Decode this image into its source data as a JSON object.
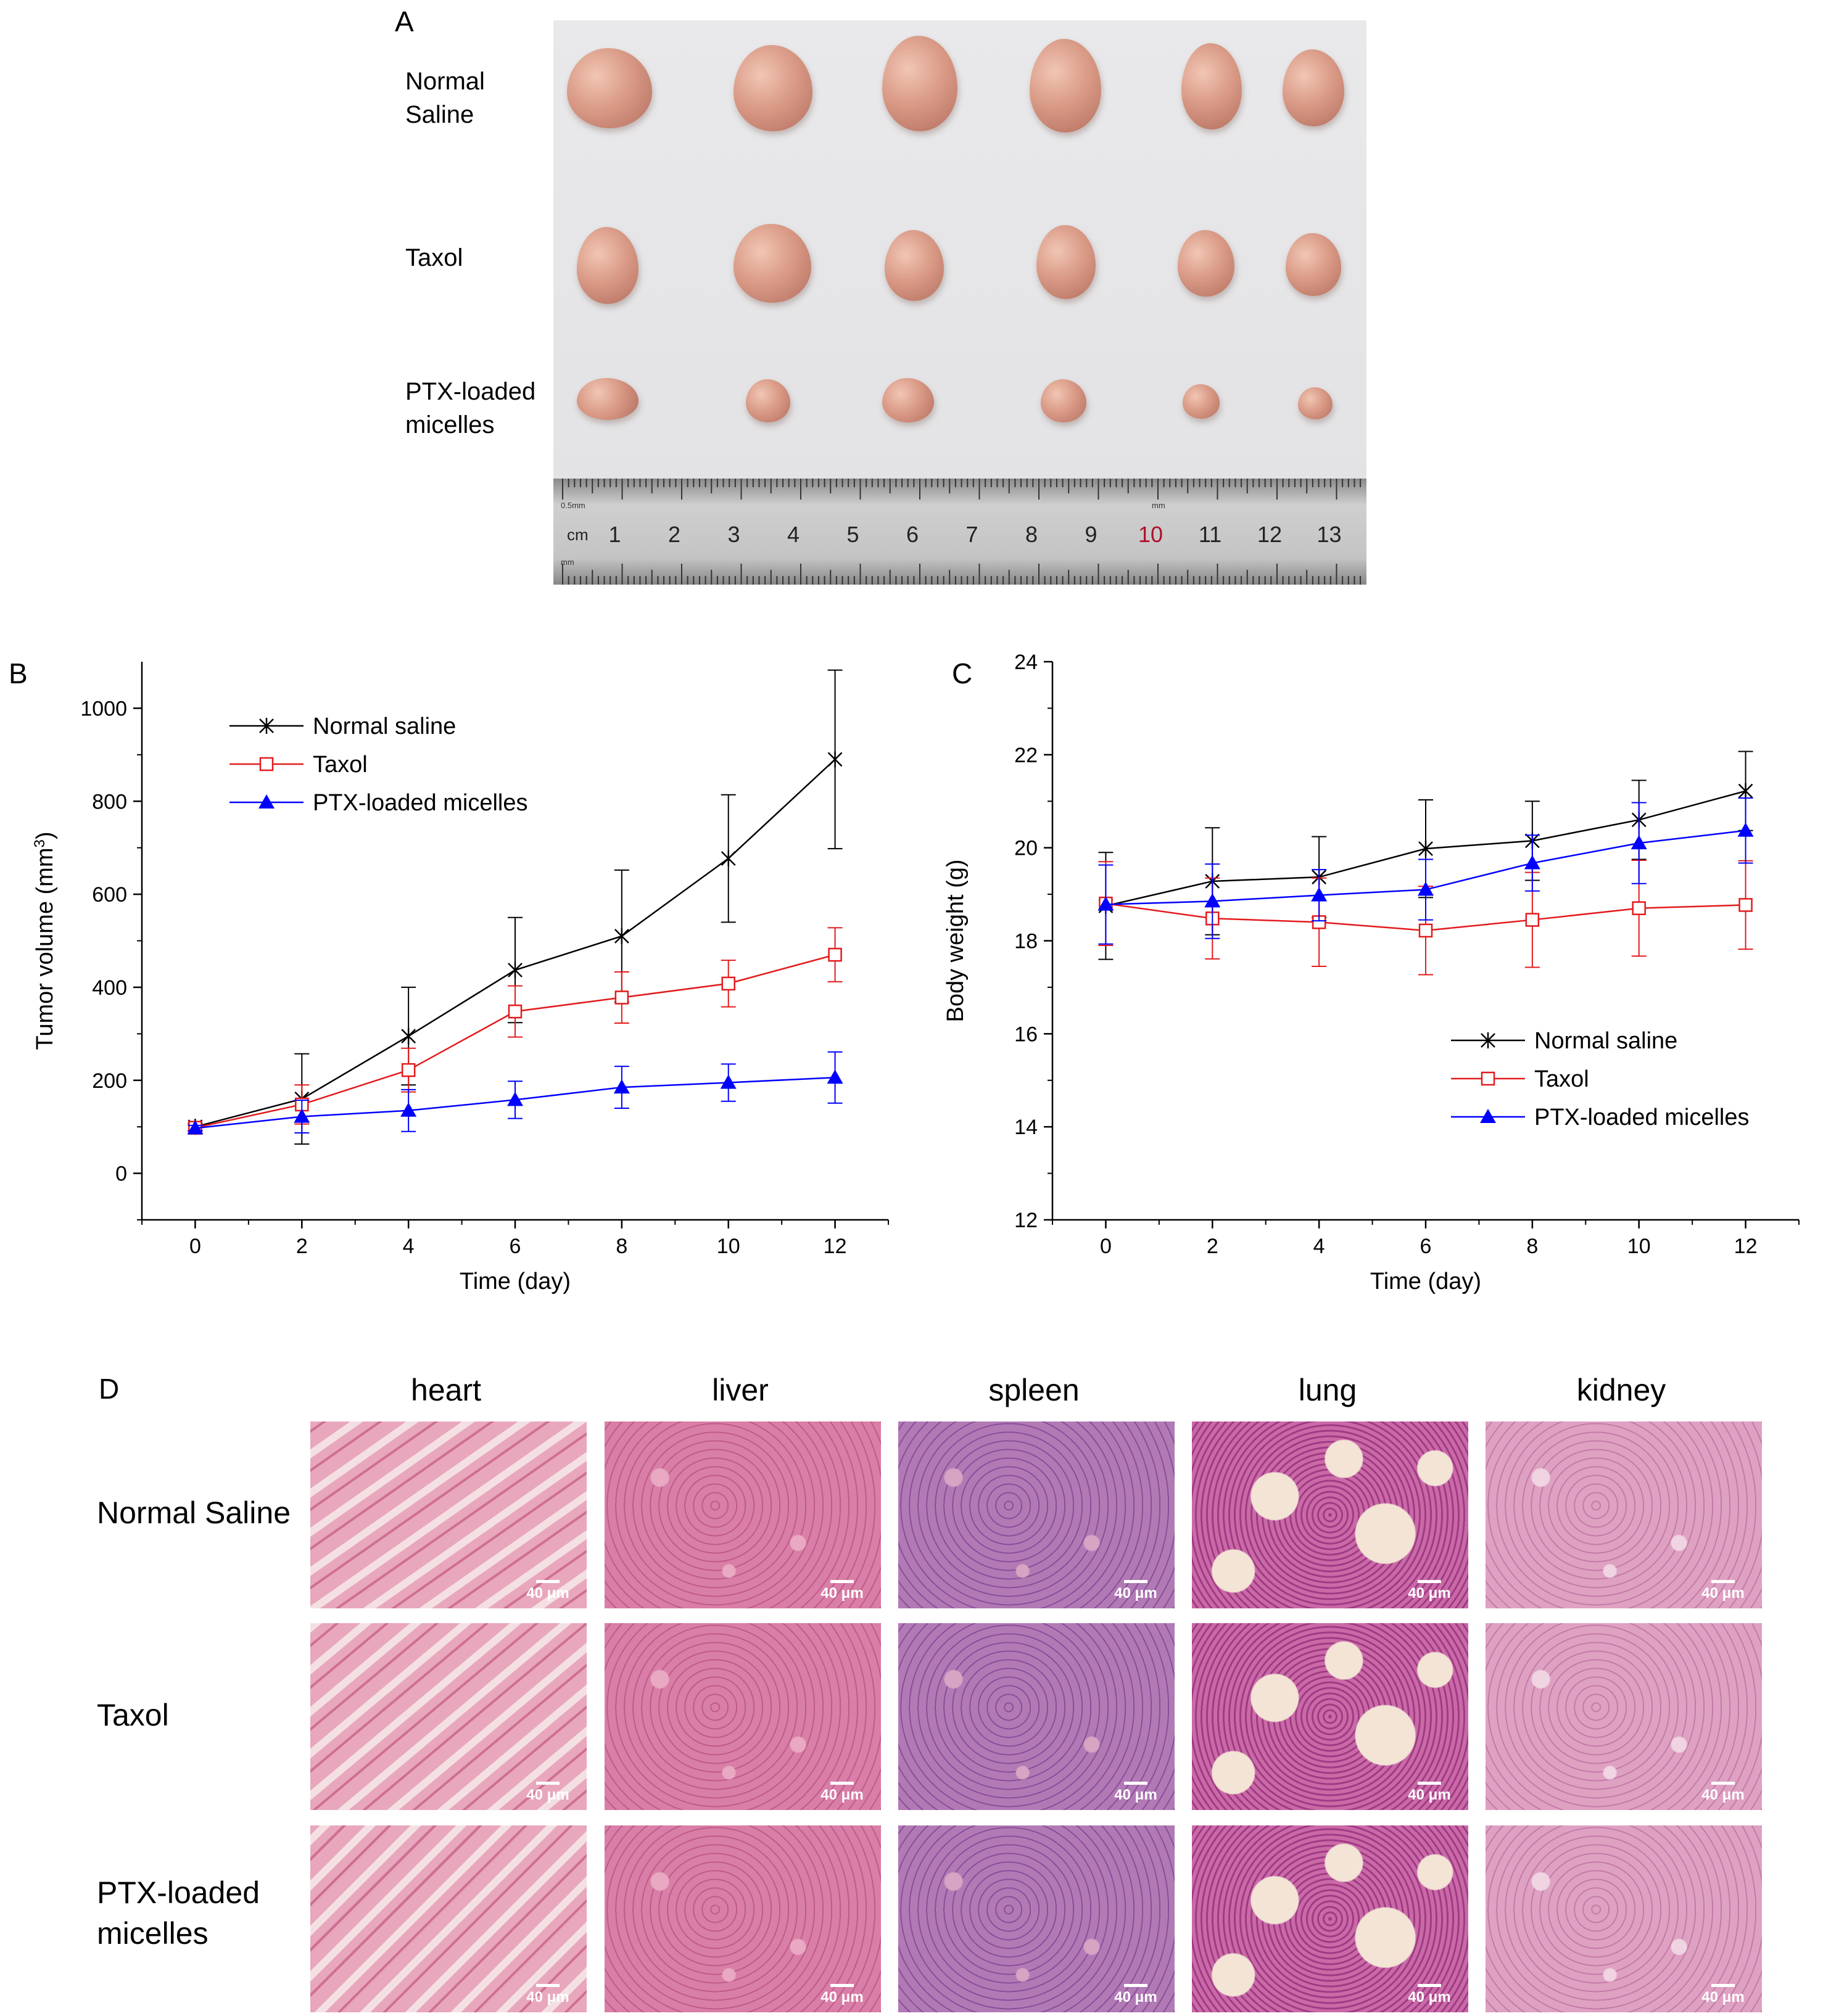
{
  "panel_labels": {
    "a": "A",
    "b": "B",
    "c": "C",
    "d": "D"
  },
  "panel_a": {
    "row_labels": [
      [
        "Normal",
        "Saline"
      ],
      [
        "Taxol"
      ],
      [
        "PTX-loaded",
        "micelles"
      ]
    ],
    "ruler": {
      "unit": "cm",
      "numbers": [
        "1",
        "2",
        "3",
        "4",
        "5",
        "6",
        "7",
        "8",
        "9",
        "10",
        "11",
        "12",
        "13"
      ],
      "small_top": "0.5mm",
      "small_mid": "mm",
      "small_bottom": "mm"
    }
  },
  "legend_labels": [
    "Normal saline",
    "Taxol",
    "PTX-loaded micelles"
  ],
  "colors": {
    "normal_saline": "#000000",
    "taxol": "#e31a1c",
    "ptx": "#0000ff"
  },
  "chart_data": [
    {
      "id": "B",
      "type": "line",
      "title": "",
      "xlabel": "Time (day)",
      "ylabel": "Tumor volume (mm3)",
      "ylabel_main": "Tumor volume (mm",
      "ylabel_sup": "3",
      "ylabel_tail": ")",
      "x": [
        0,
        2,
        4,
        6,
        8,
        10,
        12
      ],
      "xlim": [
        -1,
        13
      ],
      "ylim": [
        -100,
        1100
      ],
      "xticks": [
        0,
        2,
        4,
        6,
        8,
        10,
        12
      ],
      "yticks": [
        0,
        200,
        400,
        600,
        800,
        1000
      ],
      "legend_position": "top-left",
      "series": [
        {
          "name": "Normal saline",
          "marker": "asterisk",
          "color": "#000000",
          "values": [
            100,
            160,
            295,
            437,
            510,
            677,
            890
          ],
          "errors": [
            8,
            97,
            105,
            113,
            142,
            137,
            192
          ]
        },
        {
          "name": "Taxol",
          "marker": "open-square",
          "color": "#e31a1c",
          "values": [
            98,
            148,
            222,
            348,
            378,
            408,
            470
          ],
          "errors": [
            7,
            42,
            47,
            55,
            55,
            50,
            58
          ]
        },
        {
          "name": "PTX-loaded micelles",
          "marker": "filled-triangle",
          "color": "#0000ff",
          "values": [
            97,
            122,
            135,
            158,
            185,
            195,
            206
          ],
          "errors": [
            6,
            35,
            45,
            40,
            45,
            40,
            55
          ]
        }
      ]
    },
    {
      "id": "C",
      "type": "line",
      "title": "",
      "xlabel": "Time (day)",
      "ylabel": "Body weight (g)",
      "x": [
        0,
        2,
        4,
        6,
        8,
        10,
        12
      ],
      "xlim": [
        -1,
        13
      ],
      "ylim": [
        12,
        24
      ],
      "xticks": [
        0,
        2,
        4,
        6,
        8,
        10,
        12
      ],
      "yticks": [
        12,
        14,
        16,
        18,
        20,
        22,
        24
      ],
      "legend_position": "bottom-right",
      "series": [
        {
          "name": "Normal saline",
          "marker": "asterisk",
          "color": "#000000",
          "values": [
            18.75,
            19.28,
            19.37,
            19.98,
            20.15,
            20.6,
            21.22
          ],
          "errors": [
            1.15,
            1.15,
            0.87,
            1.05,
            0.85,
            0.85,
            0.85
          ]
        },
        {
          "name": "Taxol",
          "marker": "open-square",
          "color": "#e31a1c",
          "values": [
            18.8,
            18.48,
            18.4,
            18.22,
            18.45,
            18.7,
            18.77
          ],
          "errors": [
            0.9,
            0.87,
            0.95,
            0.95,
            1.02,
            1.03,
            0.95
          ]
        },
        {
          "name": "PTX-loaded micelles",
          "marker": "filled-triangle",
          "color": "#0000ff",
          "values": [
            18.78,
            18.85,
            18.98,
            19.1,
            19.67,
            20.1,
            20.37
          ],
          "errors": [
            0.85,
            0.8,
            0.55,
            0.65,
            0.6,
            0.87,
            0.7
          ]
        }
      ]
    }
  ],
  "panel_d": {
    "organs": [
      "heart",
      "liver",
      "spleen",
      "lung",
      "kidney"
    ],
    "groups": [
      [
        "Normal Saline"
      ],
      [
        "Taxol"
      ],
      [
        "PTX-loaded",
        "micelles"
      ]
    ],
    "scale_label": "40 μm"
  }
}
